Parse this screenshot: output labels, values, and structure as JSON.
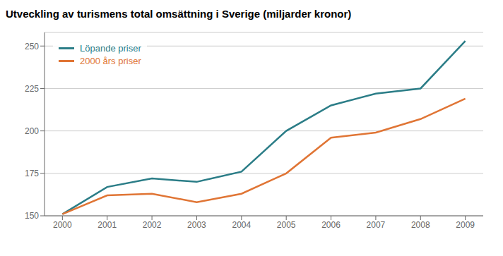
{
  "chart_data": {
    "type": "line",
    "title": "Utveckling av turismens total omsättning i Sverige (miljarder kronor)",
    "x": [
      2000,
      2001,
      2002,
      2003,
      2004,
      2005,
      2006,
      2007,
      2008,
      2009
    ],
    "series": [
      {
        "name": "Löpande priser",
        "color": "#2b7d87",
        "values": [
          151,
          167,
          172,
          170,
          176,
          200,
          215,
          222,
          225,
          253
        ]
      },
      {
        "name": "2000 års priser",
        "color": "#e07535",
        "values": [
          151,
          162,
          163,
          158,
          163,
          175,
          196,
          199,
          207,
          219
        ]
      }
    ],
    "xlim": [
      1999.6,
      2009.4
    ],
    "xticks": [
      2000,
      2001,
      2002,
      2003,
      2004,
      2005,
      2006,
      2007,
      2008,
      2009
    ],
    "ylim": [
      150,
      258
    ],
    "yticks": [
      150,
      175,
      200,
      225,
      250
    ],
    "grid": "y",
    "legend": "upper left"
  }
}
